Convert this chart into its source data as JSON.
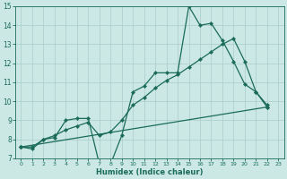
{
  "xlabel": "Humidex (Indice chaleur)",
  "xlim": [
    -0.5,
    23.5
  ],
  "ylim": [
    7,
    15
  ],
  "xticks": [
    0,
    1,
    2,
    3,
    4,
    5,
    6,
    7,
    8,
    9,
    10,
    11,
    12,
    13,
    14,
    15,
    16,
    17,
    18,
    19,
    20,
    21,
    22,
    23
  ],
  "yticks": [
    7,
    8,
    9,
    10,
    11,
    12,
    13,
    14,
    15
  ],
  "bg_color": "#cce8e4",
  "grid_color": "#aacccc",
  "line_color": "#1a6b5a",
  "line1_x": [
    0,
    1,
    2,
    3,
    4,
    5,
    6,
    7,
    8,
    9,
    10,
    11,
    12,
    13,
    14,
    15,
    16,
    17,
    18,
    19,
    20,
    21,
    22
  ],
  "line1_y": [
    7.6,
    7.5,
    8.0,
    8.1,
    9.0,
    9.1,
    9.1,
    6.7,
    6.7,
    8.2,
    10.5,
    10.8,
    11.5,
    11.5,
    11.5,
    15.0,
    14.0,
    14.1,
    13.2,
    12.1,
    10.9,
    10.5,
    9.8
  ],
  "line2_x": [
    0,
    1,
    2,
    3,
    4,
    5,
    6,
    7,
    8,
    9,
    10,
    11,
    12,
    13,
    14,
    15,
    16,
    17,
    18,
    19,
    20,
    21,
    22
  ],
  "line2_y": [
    7.6,
    7.6,
    8.0,
    8.2,
    8.5,
    8.7,
    8.9,
    8.2,
    8.4,
    9.0,
    9.8,
    10.2,
    10.7,
    11.1,
    11.4,
    11.8,
    12.2,
    12.6,
    13.0,
    13.3,
    12.1,
    10.5,
    9.7
  ],
  "line3_x": [
    0,
    22
  ],
  "line3_y": [
    7.6,
    9.7
  ]
}
